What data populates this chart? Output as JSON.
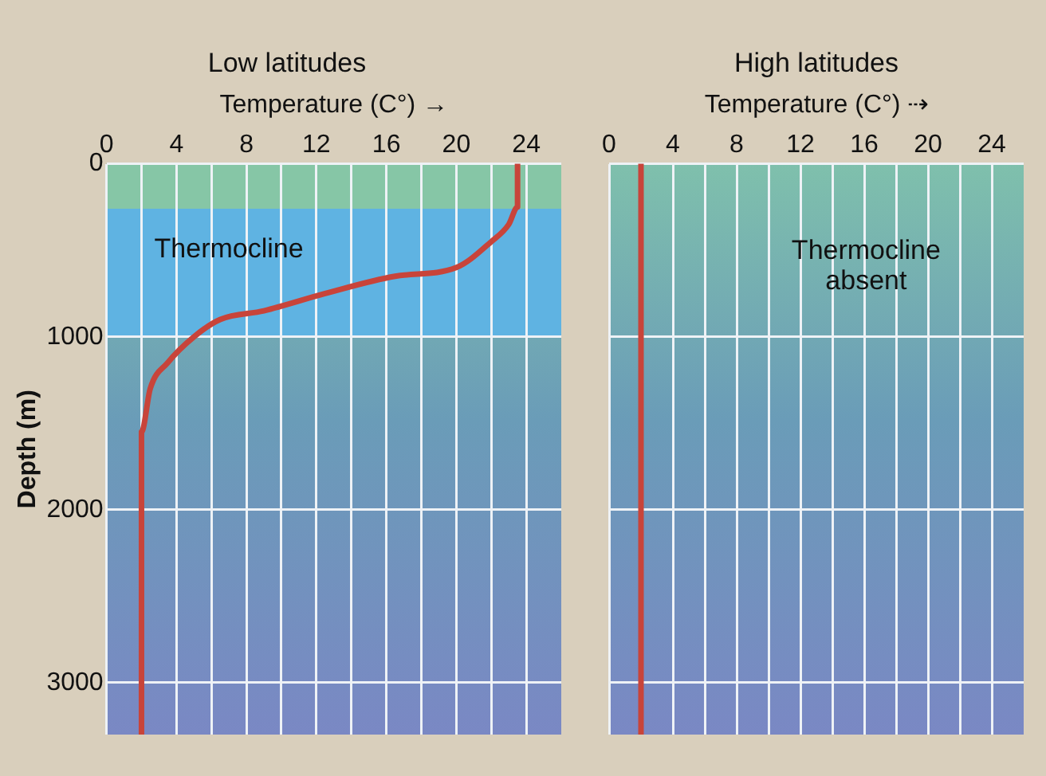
{
  "chart_data": [
    {
      "type": "line",
      "title": "Low latitudes",
      "xlabel": "Temperature (C°) →",
      "ylabel": "Depth (m)",
      "xlim": [
        0,
        26
      ],
      "xticks": [
        0,
        {
          "value": 2,
          "label": null
        },
        4,
        {
          "value": 6,
          "label": null
        },
        8,
        {
          "value": 10,
          "label": null
        },
        12,
        {
          "value": 14,
          "label": null
        },
        16,
        {
          "value": 18,
          "label": null
        },
        20,
        {
          "value": 22,
          "label": null
        },
        24
      ],
      "ylim": [
        3300,
        0
      ],
      "yticks": [
        0,
        1000,
        2000,
        3000
      ],
      "grid": true,
      "legend": false,
      "marker": "none",
      "line_style": "solid",
      "bands": [
        {
          "axis": "y",
          "from": 0,
          "to": 260,
          "label": null,
          "color": "#86c6a6"
        },
        {
          "axis": "y",
          "from": 260,
          "to": 1000,
          "label": "Thermocline",
          "color": "#5fb3e2"
        }
      ],
      "series": [
        {
          "color": "#c8443a",
          "x": [
            23.5,
            23.5,
            23.5,
            23,
            22,
            20,
            16.5,
            12.5,
            9,
            6.5,
            5,
            3.5,
            2.5,
            2,
            2,
            2
          ],
          "values": [
            0,
            50,
            250,
            350,
            450,
            600,
            650,
            750,
            850,
            900,
            1000,
            1150,
            1300,
            1550,
            1700,
            3300
          ]
        }
      ]
    },
    {
      "type": "line",
      "title": "High latitudes",
      "xlabel": "Temperature (C°) ⇢",
      "annotations": [
        "Thermocline absent"
      ],
      "xlim": [
        0,
        26
      ],
      "xticks": [
        0,
        4,
        {
          "value": 6,
          "label": null
        },
        8,
        {
          "value": 10,
          "label": null
        },
        12,
        {
          "value": 14,
          "label": null
        },
        16,
        {
          "value": 18,
          "label": null
        },
        20,
        {
          "value": 22,
          "label": null
        },
        24
      ],
      "ylim": [
        3300,
        0
      ],
      "yticks": [
        0,
        1000,
        2000,
        3000
      ],
      "tick_labels": "x",
      "grid": true,
      "legend": false,
      "marker": "none",
      "line_style": "solid",
      "series": [
        {
          "color": "#c8443a",
          "x": [
            2,
            2
          ],
          "values": [
            0,
            3300
          ]
        }
      ]
    }
  ]
}
